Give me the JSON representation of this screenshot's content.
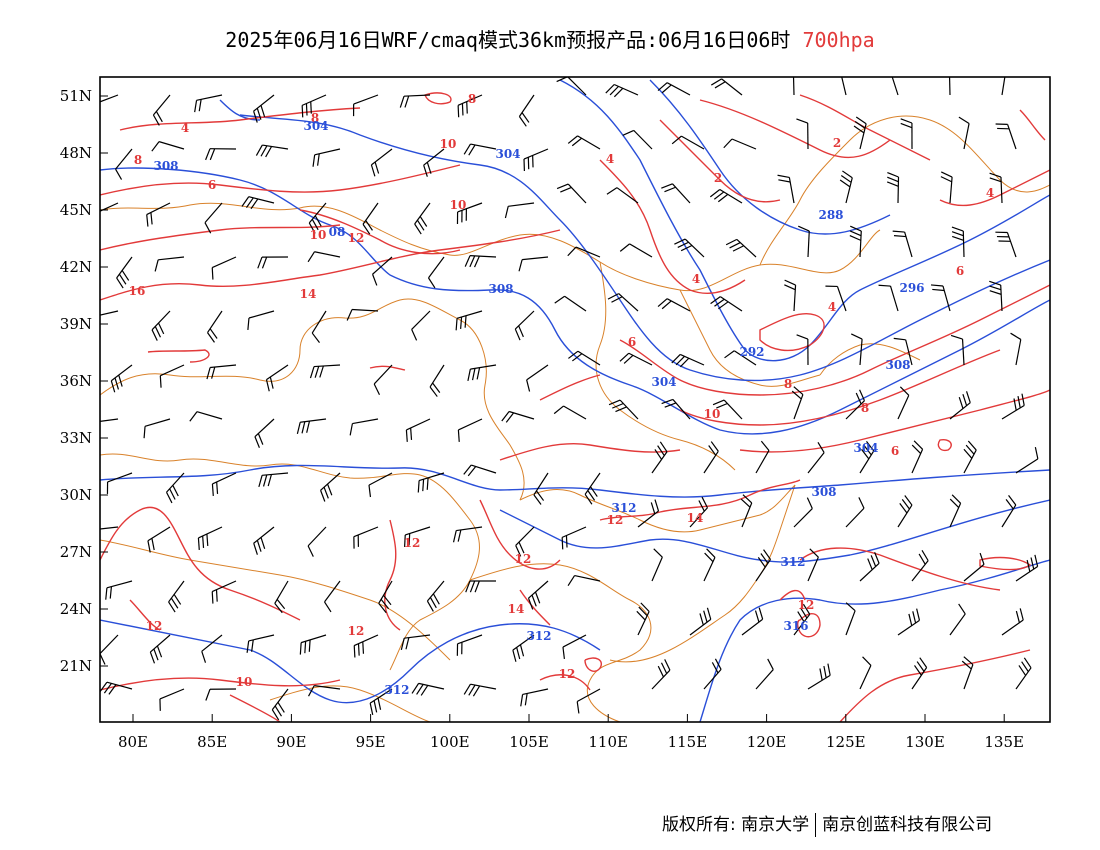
{
  "title": {
    "main": "2025年06月16日WRF/cmaq模式36km预报产品:06月16日06时 ",
    "level": "700hpa"
  },
  "colors": {
    "temperature_contour": "#e23a3a",
    "geopotential_contour": "#2a4fd8",
    "boundary": "#d9822b",
    "wind_barb": "#000000"
  },
  "axes": {
    "lat_labels": [
      "51N",
      "48N",
      "45N",
      "42N",
      "39N",
      "36N",
      "33N",
      "30N",
      "27N",
      "24N",
      "21N"
    ],
    "lon_labels": [
      "80E",
      "85E",
      "90E",
      "95E",
      "100E",
      "105E",
      "110E",
      "115E",
      "120E",
      "125E",
      "130E",
      "135E"
    ]
  },
  "contour_labels": {
    "temperature": [
      "8",
      "4",
      "8",
      "6",
      "8",
      "10",
      "10",
      "10",
      "12",
      "16",
      "14",
      "4",
      "2",
      "2",
      "4",
      "4",
      "4",
      "6",
      "6",
      "8",
      "8",
      "10",
      "6",
      "12",
      "14",
      "12",
      "12",
      "14",
      "12",
      "12",
      "10",
      "12",
      "12"
    ],
    "geopotential": [
      "304",
      "308",
      "304",
      "08",
      "308",
      "288",
      "296",
      "292",
      "304",
      "308",
      "304",
      "308",
      "312",
      "312",
      "312",
      "316",
      "312"
    ]
  },
  "footer": {
    "copyright": "版权所有: 南京大学",
    "company": "南京创蓝科技有限公司"
  }
}
